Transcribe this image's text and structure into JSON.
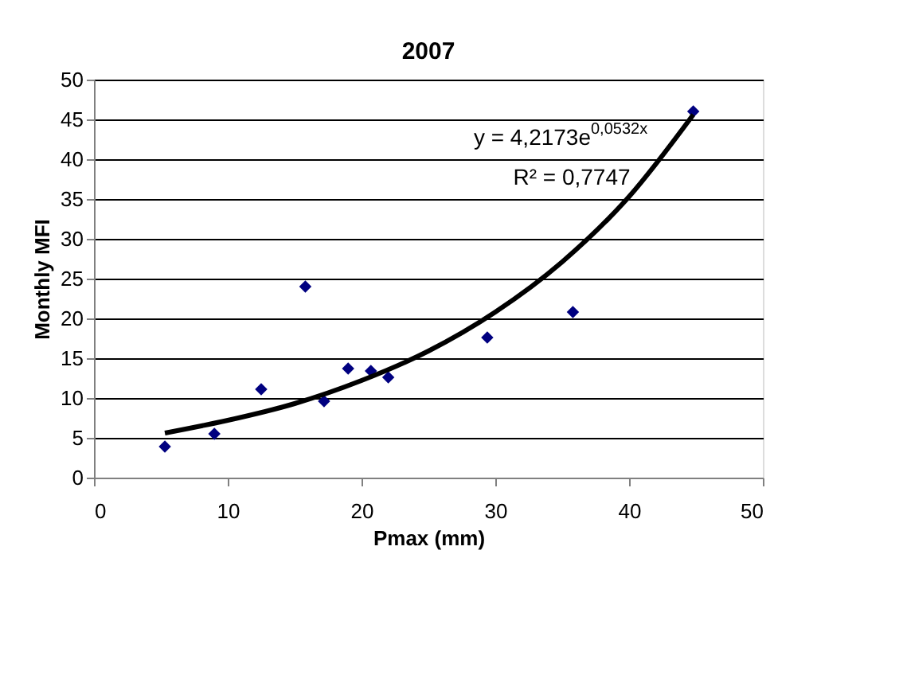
{
  "chart_data": {
    "type": "scatter",
    "title": "2007",
    "xlabel": "Pmax (mm)",
    "ylabel": "Monthly MFI",
    "xlim": [
      0,
      50
    ],
    "xticks": [
      0,
      10,
      20,
      30,
      40,
      50
    ],
    "ylim": [
      0,
      50
    ],
    "yticks": [
      0,
      5,
      10,
      15,
      20,
      25,
      30,
      35,
      40,
      45,
      50
    ],
    "grid": "y",
    "marker": "diamond",
    "legend": false,
    "series": [
      {
        "color": "#000080",
        "x": [
          5.3,
          9.0,
          12.5,
          15.8,
          17.2,
          19.0,
          20.7,
          22.0,
          29.4,
          35.8,
          44.8
        ],
        "values": [
          3.9,
          5.5,
          11.1,
          24.0,
          9.6,
          13.7,
          13.4,
          12.6,
          17.6,
          20.8,
          46.0
        ]
      },
      {
        "type": "line",
        "color": "#000000",
        "line_style": "solid",
        "marker": "none",
        "x": [
          5.3,
          10,
          15,
          20,
          25,
          30,
          35,
          40,
          44.8
        ],
        "values": [
          5.6,
          7.2,
          9.3,
          12.2,
          15.9,
          20.8,
          27.1,
          35.3,
          45.6
        ]
      }
    ],
    "annotations": [
      "y = 4,2173e$^{0,0532x}$",
      "R² = 0,7747"
    ]
  }
}
